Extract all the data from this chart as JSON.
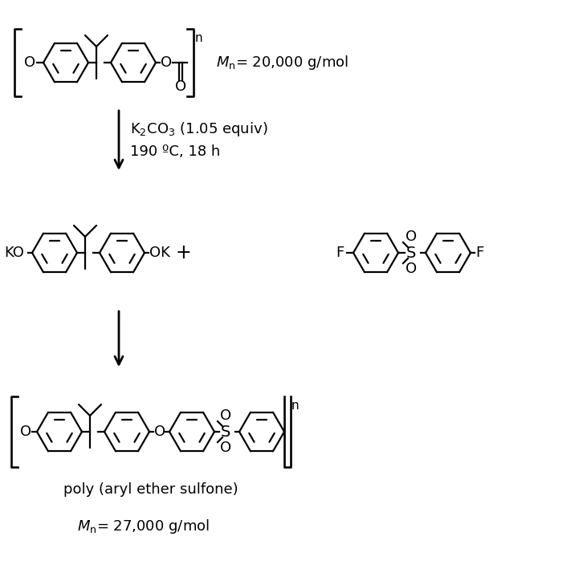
{
  "bg_color": "#ffffff",
  "text_color": "#000000",
  "figsize": [
    7.31,
    7.14
  ],
  "dpi": 100,
  "lw": 1.6,
  "fs": 13,
  "r": 28,
  "reaction_conditions": {
    "line1": "K$_2$CO$_3$ (1.05 equiv)",
    "line2": "190 ºC, 18 h"
  },
  "mn1_text": "$M_{\\rm n}$= 20,000 g/mol",
  "mn2_text": "$M_{\\rm n}$= 27,000 g/mol",
  "product_label": "poly (aryl ether sulfone)"
}
